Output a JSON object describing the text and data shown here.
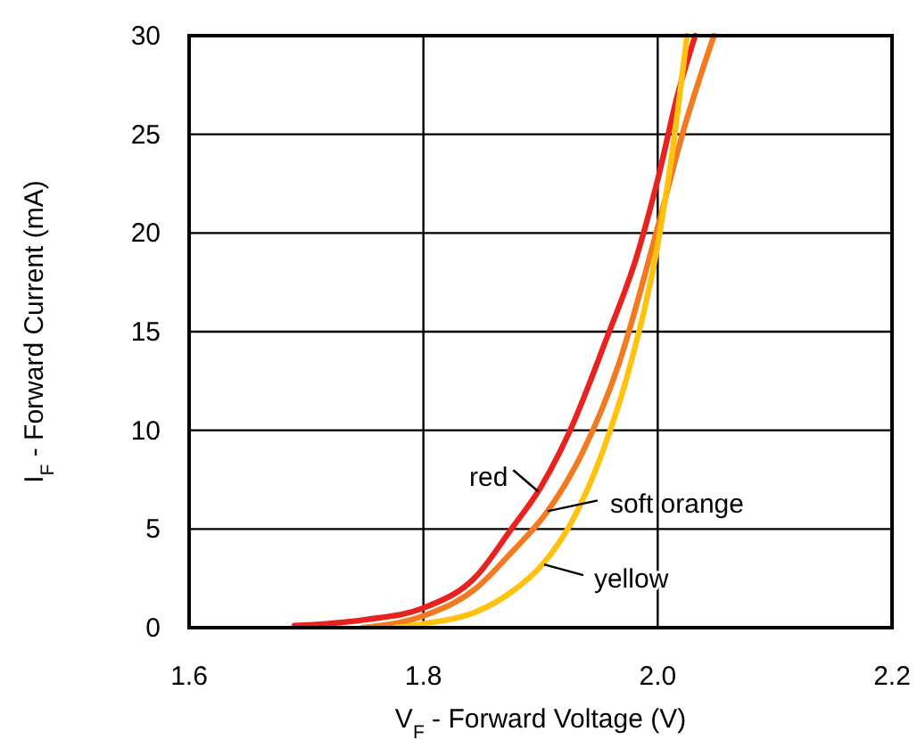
{
  "chart_data": {
    "type": "line",
    "xlabel": "V$_{F}$ - Forward Voltage (V)",
    "ylabel": "I$_{F}$ - Forward Current (mA)",
    "xlim": [
      1.6,
      2.2
    ],
    "xticks": [
      1.6,
      1.8,
      {
        "value": 2,
        "label": "2.0"
      },
      2.2
    ],
    "ylim": [
      0,
      30
    ],
    "yticks": [
      0,
      5,
      10,
      15,
      20,
      25,
      30
    ],
    "grid": true,
    "marker": "none",
    "line_style": "solid",
    "series": [
      {
        "color": "#e8231f",
        "x": [
          1.69,
          1.75,
          1.8,
          1.845,
          1.875,
          1.9,
          1.926,
          1.956,
          1.982,
          2.0,
          2.017,
          2.032
        ],
        "values": [
          0.1,
          0.4,
          1,
          2.6,
          5,
          7.1,
          10.1,
          14.6,
          18.8,
          22.7,
          27,
          30
        ]
      },
      {
        "color": "#f47a20",
        "x": [
          1.748,
          1.8,
          1.845,
          1.875,
          1.906,
          1.936,
          1.967,
          2.0,
          2.022,
          2.048
        ],
        "values": [
          0,
          0.6,
          2,
          3.8,
          5.9,
          8.9,
          13.4,
          20.3,
          25.2,
          30
        ]
      },
      {
        "color": "#ffc20e",
        "x": [
          1.776,
          1.8,
          1.845,
          1.875,
          1.903,
          1.926,
          1.951,
          1.977,
          2.0,
          2.012,
          2.025
        ],
        "values": [
          0,
          0.2,
          0.8,
          1.8,
          3.3,
          5.3,
          8.6,
          13.4,
          19.4,
          23.9,
          30
        ]
      }
    ],
    "annotations": [
      {
        "text": "red",
        "x": 1.898,
        "y": 6.9
      },
      {
        "text": "soft orange",
        "x": 1.906,
        "y": 5.9
      },
      {
        "text": "yellow",
        "x": 1.903,
        "y": 3.2
      }
    ]
  }
}
